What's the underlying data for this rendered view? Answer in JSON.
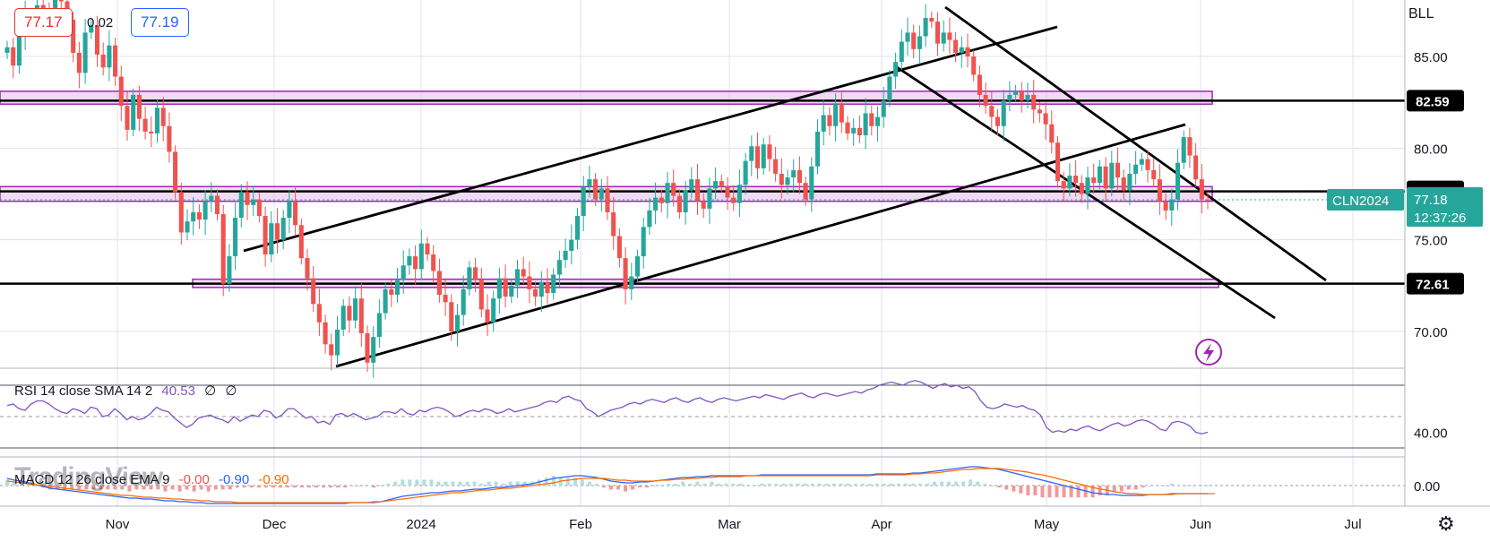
{
  "header": {
    "bid": "77.17",
    "spread": "0.02",
    "ask": "77.19",
    "symbol_menu": "BLL"
  },
  "indicators": {
    "rsi": {
      "label": "RSI 14 close SMA 14 2",
      "value": "40.53",
      "extra1": "∅",
      "extra2": "∅",
      "level": "40.00"
    },
    "macd": {
      "label": "MACD 12 26 close EMA 9",
      "hist": "-0.00",
      "macd": "-0.90",
      "signal": "-0.90",
      "level": "0.00"
    }
  },
  "watermark": "TradingView",
  "colors": {
    "up": "#26a69a",
    "down": "#ef5350",
    "zone": "#e1bee7",
    "zone_border": "#9c27b0",
    "tag": "#26a69a",
    "rsi": "#7e57c2",
    "macd": "#2962ff",
    "signal": "#ff6d00"
  },
  "chart_data": {
    "type": "candlestick",
    "symbol": "CLN2024",
    "last_price": "77.18",
    "countdown": "12:37:26",
    "y_ticks": [
      "85.00",
      "80.00",
      "75.00",
      "70.00"
    ],
    "y_range": [
      67.8,
      88.3
    ],
    "x_ticks": [
      "Nov",
      "Dec",
      "2024",
      "Feb",
      "Mar",
      "Apr",
      "May",
      "Jun",
      "Jul"
    ],
    "price_levels": [
      {
        "label": "82.59",
        "value": 82.59
      },
      {
        "label": "77.64",
        "value": 77.64
      },
      {
        "label": "72.61",
        "value": 72.61
      }
    ],
    "zones": [
      {
        "from": 82.4,
        "to": 83.1
      },
      {
        "from": 77.1,
        "to": 77.9
      },
      {
        "from": 72.4,
        "to": 72.85
      }
    ],
    "closes": [
      85.5,
      84.5,
      86.1,
      87.2,
      86.9,
      87.8,
      87.6,
      87.4,
      88.1,
      88.0,
      87.0,
      85.2,
      84.1,
      86.3,
      86.7,
      85.1,
      84.4,
      85.6,
      83.9,
      82.3,
      81.0,
      82.9,
      81.6,
      80.9,
      80.8,
      82.2,
      81.2,
      79.8,
      77.6,
      75.4,
      76.0,
      76.5,
      76.1,
      77.1,
      77.4,
      76.4,
      72.6,
      74.1,
      76.2,
      77.6,
      76.9,
      77.2,
      76.3,
      74.2,
      75.9,
      75.0,
      76.2,
      77.1,
      75.8,
      74.0,
      72.9,
      71.5,
      70.5,
      69.3,
      68.7,
      70.1,
      71.4,
      70.6,
      71.8,
      69.9,
      68.3,
      69.7,
      71.0,
      72.3,
      72.0,
      72.8,
      73.6,
      74.1,
      73.4,
      74.8,
      74.2,
      73.3,
      72.0,
      71.6,
      70.0,
      70.9,
      72.3,
      73.5,
      72.8,
      71.2,
      70.5,
      71.8,
      72.9,
      71.9,
      72.5,
      73.4,
      73.0,
      72.3,
      71.9,
      72.7,
      72.1,
      73.1,
      73.9,
      74.4,
      75.0,
      76.3,
      77.9,
      78.3,
      77.2,
      77.8,
      76.5,
      75.2,
      74.0,
      72.3,
      73.0,
      74.1,
      75.7,
      76.6,
      77.3,
      77.0,
      78.1,
      77.4,
      76.5,
      77.7,
      78.3,
      77.1,
      76.7,
      77.8,
      78.2,
      77.9,
      77.3,
      77.0,
      78.0,
      79.3,
      80.1,
      78.9,
      80.2,
      79.4,
      78.6,
      78.0,
      78.4,
      78.8,
      78.1,
      77.2,
      79.0,
      80.9,
      81.8,
      81.2,
      82.4,
      81.4,
      80.8,
      81.1,
      80.7,
      81.9,
      81.2,
      81.7,
      82.6,
      83.9,
      84.7,
      85.8,
      86.3,
      85.4,
      86.1,
      87.1,
      86.9,
      85.7,
      86.3,
      85.9,
      85.2,
      85.5,
      85.0,
      84.0,
      82.9,
      82.3,
      81.7,
      81.2,
      82.6,
      82.9,
      83.1,
      82.6,
      82.9,
      82.1,
      81.9,
      81.3,
      80.3,
      78.2,
      77.8,
      78.5,
      78.1,
      77.5,
      78.4,
      78.1,
      79.0,
      77.8,
      79.2,
      78.4,
      77.7,
      78.6,
      79.1,
      79.4,
      78.8,
      78.3,
      77.1,
      76.6,
      77.2,
      79.2,
      80.6,
      79.6,
      78.3,
      77.2,
      77.18
    ],
    "rsi_values": [
      57,
      58,
      55,
      54,
      58,
      60,
      60,
      58,
      55,
      53,
      52,
      55,
      54,
      52,
      56,
      55,
      50,
      51,
      55,
      52,
      48,
      50,
      48,
      49,
      52,
      56,
      54,
      53,
      49,
      46,
      43,
      45,
      49,
      50,
      51,
      49,
      48,
      46,
      50,
      47,
      49,
      51,
      50,
      54,
      53,
      49,
      51,
      55,
      55,
      52,
      49,
      50,
      46,
      47,
      45,
      51,
      52,
      50,
      52,
      50,
      48,
      49,
      50,
      53,
      53,
      52,
      55,
      52,
      51,
      54,
      53,
      55,
      56,
      55,
      53,
      50,
      51,
      53,
      54,
      53,
      55,
      54,
      52,
      53,
      55,
      53,
      54,
      55,
      56,
      57,
      59,
      60,
      59,
      62,
      63,
      61,
      60,
      55,
      53,
      50,
      52,
      54,
      55,
      56,
      58,
      59,
      58,
      60,
      61,
      60,
      59,
      61,
      62,
      60,
      59,
      61,
      62,
      60,
      59,
      61,
      62,
      61,
      60,
      61,
      62,
      63,
      62,
      64,
      63,
      62,
      61,
      63,
      64,
      65,
      63,
      62,
      64,
      65,
      64,
      63,
      64,
      65,
      66,
      65,
      67,
      68,
      70,
      71,
      72,
      71,
      70,
      72,
      73,
      72,
      70,
      68,
      70,
      71,
      69,
      70,
      68,
      69,
      66,
      60,
      56,
      55,
      56,
      58,
      57,
      56,
      57,
      55,
      54,
      51,
      43,
      40,
      41,
      40,
      42,
      41,
      43,
      44,
      42,
      41,
      43,
      45,
      46,
      44,
      45,
      47,
      48,
      47,
      45,
      42,
      41,
      46,
      47,
      46,
      44,
      40,
      39,
      40
    ],
    "macd_values": [
      0.8,
      0.6,
      0.5,
      0.3,
      0.1,
      -0.1,
      -0.3,
      -0.4,
      -0.5,
      -0.6,
      -0.7,
      -0.8,
      -0.9,
      -1.0,
      -1.1,
      -1.2,
      -1.3,
      -1.4,
      -1.4,
      -1.5,
      -1.5,
      -1.6,
      -1.7,
      -1.7,
      -1.8,
      -1.8,
      -1.9,
      -1.9,
      -2.0,
      -2.0,
      -2.0,
      -2.0,
      -2.0,
      -2.0,
      -2.0,
      -2.0,
      -2.0,
      -2.0,
      -2.0,
      -2.0,
      -2.0,
      -2.0,
      -2.0,
      -2.0,
      -2.0,
      -2.0,
      -2.0,
      -2.0,
      -1.9,
      -1.9,
      -1.9,
      -1.9,
      -1.8,
      -1.6,
      -1.4,
      -1.2,
      -1.1,
      -1.0,
      -0.9,
      -0.8,
      -0.8,
      -0.7,
      -0.6,
      -0.6,
      -0.5,
      -0.4,
      -0.4,
      -0.3,
      -0.2,
      -0.2,
      -0.1,
      0.0,
      0.1,
      0.2,
      0.4,
      0.6,
      0.8,
      0.9,
      1.0,
      1.1,
      1.1,
      1.0,
      0.9,
      0.7,
      0.5,
      0.4,
      0.3,
      0.3,
      0.4,
      0.4,
      0.5,
      0.6,
      0.7,
      0.8,
      0.9,
      0.9,
      1.0,
      1.0,
      1.1,
      1.1,
      1.1,
      1.1,
      1.1,
      1.1,
      1.1,
      1.2,
      1.2,
      1.2,
      1.2,
      1.2,
      1.2,
      1.2,
      1.2,
      1.2,
      1.2,
      1.2,
      1.2,
      1.2,
      1.2,
      1.2,
      1.2,
      1.3,
      1.3,
      1.3,
      1.3,
      1.3,
      1.4,
      1.4,
      1.5,
      1.6,
      1.7,
      1.8,
      1.9,
      2.0,
      2.1,
      2.1,
      2.0,
      1.9,
      1.8,
      1.6,
      1.4,
      1.2,
      1.0,
      0.8,
      0.6,
      0.4,
      0.2,
      0.0,
      -0.2,
      -0.4,
      -0.6,
      -0.8,
      -0.9,
      -1.0,
      -1.0,
      -1.1,
      -1.1,
      -1.1,
      -1.1,
      -1.0,
      -1.0,
      -1.0,
      -0.9,
      -0.9,
      -0.9,
      -0.9,
      -0.9,
      -0.9
    ],
    "signal_values": [
      0.5,
      0.4,
      0.3,
      0.2,
      0.1,
      0.0,
      -0.1,
      -0.2,
      -0.3,
      -0.4,
      -0.5,
      -0.6,
      -0.7,
      -0.8,
      -0.9,
      -1.0,
      -1.1,
      -1.1,
      -1.2,
      -1.3,
      -1.3,
      -1.4,
      -1.4,
      -1.5,
      -1.5,
      -1.6,
      -1.6,
      -1.7,
      -1.7,
      -1.8,
      -1.8,
      -1.8,
      -1.9,
      -1.9,
      -1.9,
      -1.9,
      -1.9,
      -1.9,
      -1.9,
      -1.9,
      -1.9,
      -1.9,
      -1.9,
      -1.9,
      -1.9,
      -1.9,
      -1.9,
      -1.9,
      -1.9,
      -1.9,
      -1.9,
      -1.8,
      -1.8,
      -1.7,
      -1.6,
      -1.5,
      -1.4,
      -1.3,
      -1.2,
      -1.1,
      -1.0,
      -0.9,
      -0.8,
      -0.8,
      -0.7,
      -0.6,
      -0.5,
      -0.5,
      -0.4,
      -0.3,
      -0.3,
      -0.2,
      -0.1,
      0.0,
      0.1,
      0.2,
      0.3,
      0.5,
      0.6,
      0.7,
      0.8,
      0.8,
      0.8,
      0.8,
      0.7,
      0.6,
      0.6,
      0.5,
      0.5,
      0.5,
      0.5,
      0.6,
      0.6,
      0.7,
      0.7,
      0.8,
      0.8,
      0.9,
      0.9,
      1.0,
      1.0,
      1.0,
      1.0,
      1.1,
      1.1,
      1.1,
      1.1,
      1.1,
      1.1,
      1.1,
      1.1,
      1.1,
      1.1,
      1.1,
      1.1,
      1.1,
      1.1,
      1.1,
      1.1,
      1.1,
      1.1,
      1.2,
      1.2,
      1.2,
      1.2,
      1.2,
      1.3,
      1.3,
      1.4,
      1.4,
      1.5,
      1.6,
      1.7,
      1.8,
      1.8,
      1.9,
      1.9,
      1.9,
      1.9,
      1.8,
      1.7,
      1.6,
      1.5,
      1.3,
      1.2,
      1.0,
      0.8,
      0.6,
      0.4,
      0.2,
      0.0,
      -0.2,
      -0.4,
      -0.5,
      -0.7,
      -0.8,
      -0.9,
      -0.9,
      -1.0,
      -1.0,
      -1.0,
      -1.0,
      -1.0,
      -0.9,
      -0.9,
      -0.9,
      -0.9,
      -0.9,
      -0.9
    ]
  }
}
